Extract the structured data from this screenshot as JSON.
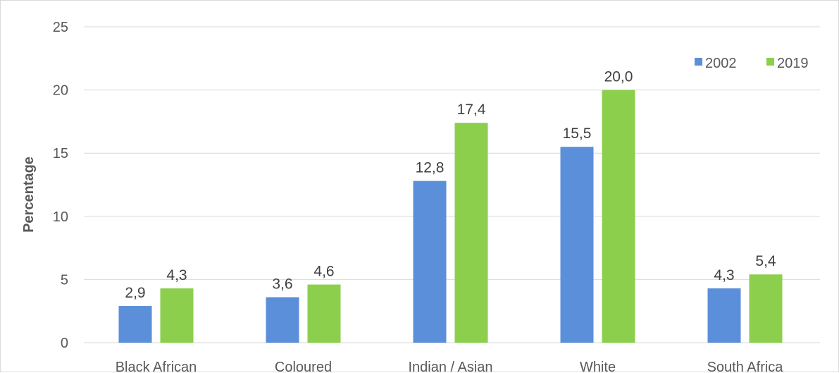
{
  "chart_data": {
    "type": "bar",
    "categories": [
      "Black African",
      "Coloured",
      "Indian / Asian",
      "White",
      "South Africa"
    ],
    "series": [
      {
        "name": "2002",
        "values": [
          2.9,
          3.6,
          12.8,
          15.5,
          4.3
        ],
        "value_labels": [
          "2,9",
          "3,6",
          "12,8",
          "15,5",
          "4,3"
        ],
        "color": "#5b8fd9"
      },
      {
        "name": "2019",
        "values": [
          4.3,
          4.6,
          17.4,
          20.0,
          5.4
        ],
        "value_labels": [
          "4,3",
          "4,6",
          "17,4",
          "20,0",
          "5,4"
        ],
        "color": "#8ccf4d"
      }
    ],
    "ylabel": "Percentage",
    "ylim": [
      0,
      25
    ],
    "yticks": [
      0,
      5,
      10,
      15,
      20,
      25
    ],
    "grid": true,
    "legend_position": "top-right",
    "gridline_color": "#d9d9d9"
  }
}
